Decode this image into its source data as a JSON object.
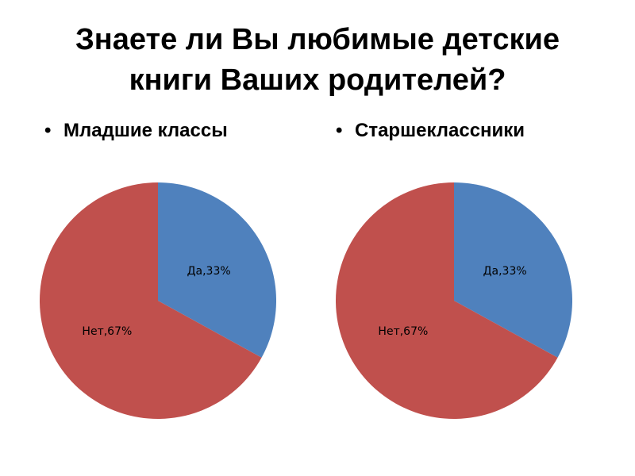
{
  "title": [
    "Знаете ли Вы любимые детские",
    "книги Ваших родителей?"
  ],
  "chart_data": [
    {
      "type": "pie",
      "title": "Младшие классы",
      "values": [
        33,
        67
      ],
      "value_labels": [
        "Да,33%",
        "Нет,67%"
      ],
      "colors": [
        "#4f81bd",
        "#c0504d"
      ]
    },
    {
      "type": "pie",
      "title": "Старшеклассники",
      "values": [
        33,
        67
      ],
      "value_labels": [
        "Да,33%",
        "Нет,67%"
      ],
      "colors": [
        "#4f81bd",
        "#c0504d"
      ]
    }
  ]
}
